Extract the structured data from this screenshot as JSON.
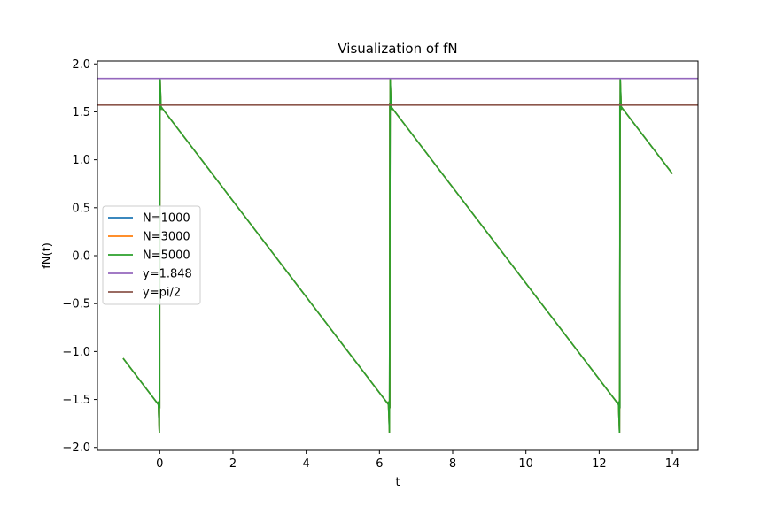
{
  "chart_data": {
    "type": "line",
    "title": "Visualization of fN",
    "xlabel": "t",
    "ylabel": "fN(t)",
    "xlim": [
      -1.7,
      14.7
    ],
    "ylim": [
      -2.03,
      2.03
    ],
    "xticks": [
      0,
      2,
      4,
      6,
      8,
      10,
      12,
      14
    ],
    "yticks": [
      2.0,
      1.5,
      1.0,
      0.5,
      0.0,
      -0.5,
      -1.0,
      -1.5,
      -2.0
    ],
    "xtick_labels": [
      "0",
      "2",
      "4",
      "6",
      "8",
      "10",
      "12",
      "14"
    ],
    "ytick_labels": [
      "2.0",
      "1.5",
      "1.0",
      "0.5",
      "0.0",
      "−0.5",
      "−1.0",
      "−1.5",
      "−2.0"
    ],
    "grid": false,
    "legend_position": "center-left",
    "series": [
      {
        "name": "N=1000",
        "color": "#1f77b4",
        "kind": "sawtooth",
        "points": [
          [
            -1.0,
            -1.07
          ],
          [
            0.0,
            -1.571
          ],
          [
            0.0,
            1.571
          ],
          [
            6.283,
            -1.571
          ],
          [
            6.283,
            1.571
          ],
          [
            12.566,
            -1.571
          ],
          [
            12.566,
            1.571
          ],
          [
            14.0,
            0.855
          ]
        ],
        "overshoot": 1.848
      },
      {
        "name": "N=3000",
        "color": "#ff7f0e",
        "kind": "sawtooth",
        "points": [
          [
            -1.0,
            -1.07
          ],
          [
            0.0,
            -1.571
          ],
          [
            0.0,
            1.571
          ],
          [
            6.283,
            -1.571
          ],
          [
            6.283,
            1.571
          ],
          [
            12.566,
            -1.571
          ],
          [
            12.566,
            1.571
          ],
          [
            14.0,
            0.855
          ]
        ],
        "overshoot": 1.848
      },
      {
        "name": "N=5000",
        "color": "#2ca02c",
        "kind": "sawtooth",
        "points": [
          [
            -1.0,
            -1.07
          ],
          [
            0.0,
            -1.571
          ],
          [
            0.0,
            1.571
          ],
          [
            6.283,
            -1.571
          ],
          [
            6.283,
            1.571
          ],
          [
            12.566,
            -1.571
          ],
          [
            12.566,
            1.571
          ],
          [
            14.0,
            0.855
          ]
        ],
        "overshoot": 1.848
      },
      {
        "name": "y=1.848",
        "color": "#9467bd",
        "kind": "hline",
        "y": 1.848
      },
      {
        "name": "y=pi/2",
        "color": "#8c564b",
        "kind": "hline",
        "y": 1.5708
      }
    ]
  }
}
